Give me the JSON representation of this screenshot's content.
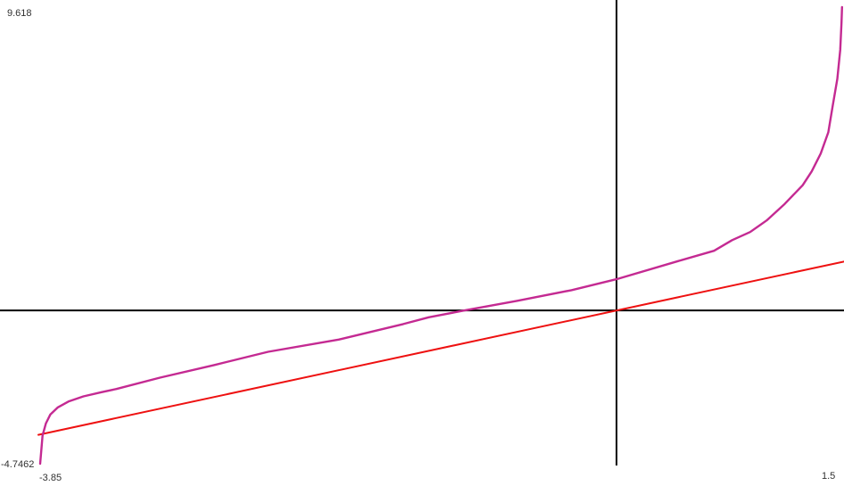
{
  "page": {
    "background": "#ffffff"
  },
  "labels": {
    "y_max": "9.618",
    "y_min": "-4.7462",
    "x_min": "-3.85",
    "x_max": "1.5"
  },
  "colors": {
    "axis": "#000000",
    "red_line": "#ee1111",
    "magenta_curve": "#c42a92",
    "label_text": "#303030"
  },
  "chart_data": {
    "type": "line",
    "title": "",
    "xlabel": "",
    "ylabel": "",
    "xlim": [
      -3.85,
      1.5
    ],
    "ylim": [
      -4.7462,
      9.618
    ],
    "grid": false,
    "legend": "none",
    "axes_style": "origin-cross, no tick marks; window extremes labeled at the canvas corners",
    "corner_labels": {
      "y_max": "9.618",
      "y_min": "-4.7462",
      "x_min": "-3.85",
      "x_max": "1.5"
    },
    "series": [
      {
        "name": "red-straight-line",
        "description": "straight line through the origin, approximately y = x",
        "color": "#ee1111",
        "stroke_width": 2,
        "points": [
          [
            -3.85,
            -3.85
          ],
          [
            1.515,
            1.515
          ]
        ]
      },
      {
        "name": "magenta-curve",
        "description": "monotone increasing curve, near-vertical at both window edges; crosses y=0 near x=-1 and passes (0, ~1)",
        "color": "#c42a92",
        "stroke_width": 2.4,
        "points": [
          [
            -3.838,
            -4.746
          ],
          [
            -3.83,
            -4.3
          ],
          [
            -3.822,
            -3.87
          ],
          [
            -3.8,
            -3.5
          ],
          [
            -3.77,
            -3.22
          ],
          [
            -3.72,
            -3.0
          ],
          [
            -3.65,
            -2.82
          ],
          [
            -3.55,
            -2.66
          ],
          [
            -3.43,
            -2.53
          ],
          [
            -3.33,
            -2.43
          ],
          [
            -3.04,
            -2.08
          ],
          [
            -2.68,
            -1.69
          ],
          [
            -2.32,
            -1.28
          ],
          [
            -1.85,
            -0.9
          ],
          [
            -1.42,
            -0.42
          ],
          [
            -1.25,
            -0.21
          ],
          [
            -1.015,
            0.0
          ],
          [
            -0.66,
            0.3
          ],
          [
            -0.3,
            0.63
          ],
          [
            0.0,
            0.97
          ],
          [
            0.41,
            1.53
          ],
          [
            0.65,
            1.85
          ],
          [
            0.77,
            2.18
          ],
          [
            0.89,
            2.43
          ],
          [
            1.0,
            2.79
          ],
          [
            1.12,
            3.3
          ],
          [
            1.24,
            3.88
          ],
          [
            1.3,
            4.31
          ],
          [
            1.36,
            4.86
          ],
          [
            1.41,
            5.52
          ],
          [
            1.44,
            6.35
          ],
          [
            1.47,
            7.17
          ],
          [
            1.49,
            8.08
          ],
          [
            1.498,
            8.91
          ],
          [
            1.502,
            9.4
          ]
        ]
      }
    ]
  }
}
